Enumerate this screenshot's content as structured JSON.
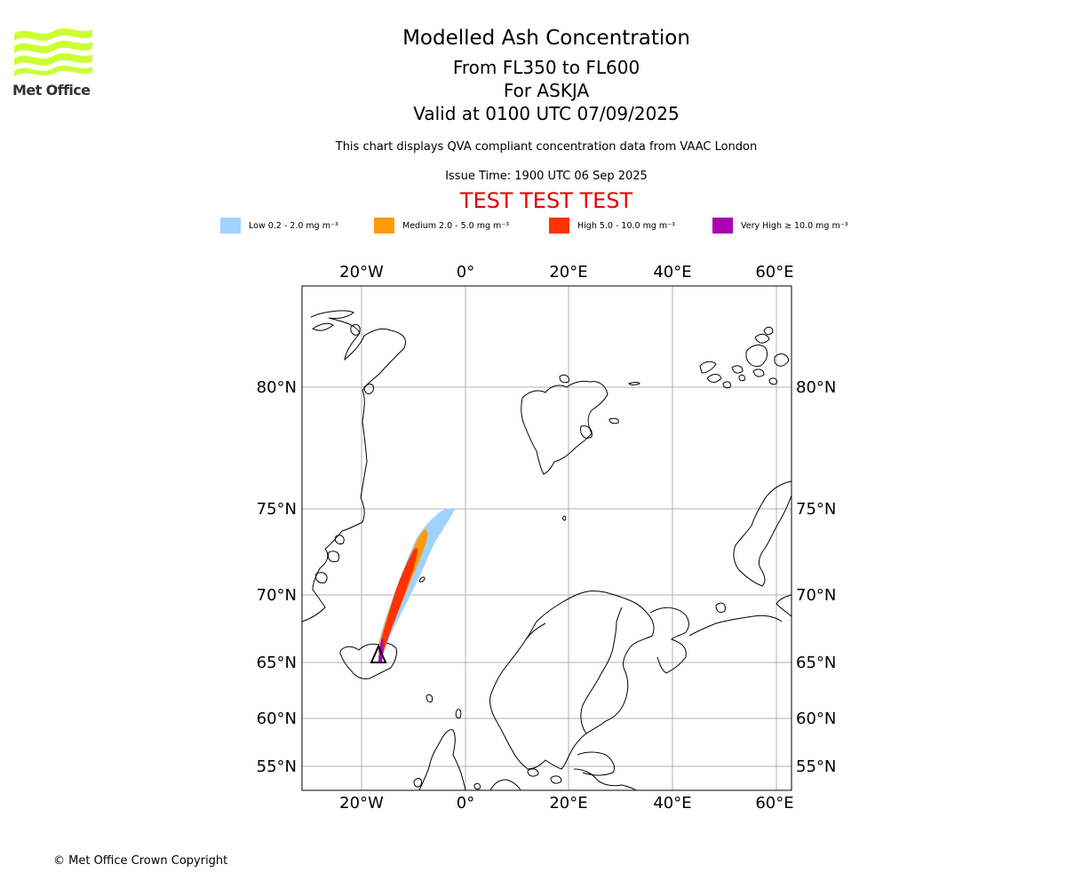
{
  "logo": {
    "text": "Met Office",
    "color": "#ccff33"
  },
  "header": {
    "title": "Modelled Ash Concentration",
    "subtitle": "From FL350 to FL600",
    "volcano": "For ASKJA",
    "valid": "Valid at 0100 UTC 07/09/2025",
    "description": "This chart displays QVA compliant concentration data from VAAC London",
    "issue_time": "Issue Time: 1900 UTC 06 Sep 2025",
    "test_banner": "TEST TEST TEST"
  },
  "legend": [
    {
      "label": "Low 0.2 - 2.0 mg m⁻³",
      "color": "#a0d2ff"
    },
    {
      "label": "Medium 2.0 - 5.0 mg m⁻³",
      "color": "#ff9b0a"
    },
    {
      "label": "High 5.0 - 10.0 mg m⁻³",
      "color": "#ff3200"
    },
    {
      "label": "Very High ≥ 10.0 mg m⁻³",
      "color": "#aa00b4"
    }
  ],
  "map": {
    "lon_labels": [
      "20°W",
      "0°",
      "20°E",
      "40°E",
      "60°E"
    ],
    "lat_labels": [
      "80°N",
      "75°N",
      "70°N",
      "65°N",
      "60°N",
      "55°N"
    ]
  },
  "footer": {
    "copyright": "© Met Office Crown Copyright"
  }
}
